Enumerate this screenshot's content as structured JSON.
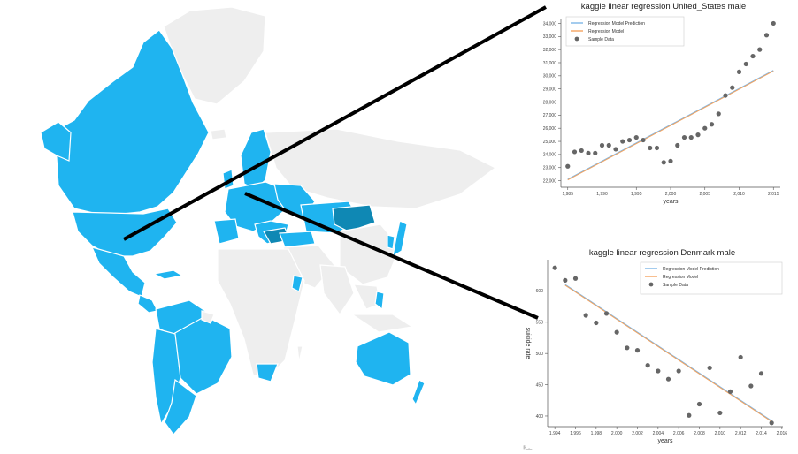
{
  "map": {
    "highlight_color": "#1fb4f0",
    "dark_highlight_color": "#0f88b4",
    "base_color": "#eeeeee",
    "border_color": "#ffffff"
  },
  "connector_color": "#000000",
  "chart_data": [
    {
      "type": "scatter",
      "title": "kaggle linear regression United_States male",
      "xlabel": "years",
      "ylabel": "",
      "xlim": [
        1984,
        2016
      ],
      "ylim": [
        21500,
        34300
      ],
      "xticks": [
        "1,985",
        "1,990",
        "1,995",
        "2,000",
        "2,005",
        "2,010",
        "2,015"
      ],
      "yticks": [
        "22,000",
        "23,000",
        "24,000",
        "25,000",
        "26,000",
        "27,000",
        "28,000",
        "29,000",
        "30,000",
        "31,000",
        "32,000",
        "33,000",
        "34,000"
      ],
      "legend": [
        "Regression Model Prediction",
        "Regression Model",
        "Sample Data"
      ],
      "legend_position": "top-left",
      "colors": {
        "prediction": "#7eb6e6",
        "model": "#f4a460",
        "sample": "#666666"
      },
      "x": [
        1985,
        1986,
        1987,
        1988,
        1989,
        1990,
        1991,
        1992,
        1993,
        1994,
        1995,
        1996,
        1997,
        1998,
        1999,
        2000,
        2001,
        2002,
        2003,
        2004,
        2005,
        2006,
        2007,
        2008,
        2009,
        2010,
        2011,
        2012,
        2013,
        2014,
        2015
      ],
      "y": [
        23100,
        24200,
        24300,
        24100,
        24100,
        24700,
        24700,
        24400,
        25000,
        25100,
        25300,
        25100,
        24500,
        24500,
        23400,
        23500,
        24700,
        25300,
        25300,
        25500,
        26000,
        26300,
        27100,
        28500,
        29100,
        30300,
        30900,
        31500,
        32000,
        33100,
        34000
      ],
      "line_x": [
        1985,
        2015
      ],
      "line_y": [
        22100,
        30400
      ]
    },
    {
      "type": "scatter",
      "title": "kaggle linear regression Denmark male",
      "xlabel": "years",
      "ylabel": "suicide rate",
      "xlim": [
        1993.3,
        2016.1
      ],
      "ylim": [
        383,
        650
      ],
      "xticks": [
        "1,994",
        "1,996",
        "1,998",
        "2,000",
        "2,002",
        "2,004",
        "2,006",
        "2,008",
        "2,010",
        "2,012",
        "2,014",
        "2,016"
      ],
      "xtick_values": [
        1994,
        1996,
        1998,
        2000,
        2002,
        2004,
        2006,
        2008,
        2010,
        2012,
        2014,
        2016
      ],
      "yticks": [
        "400",
        "450",
        "500",
        "550",
        "600"
      ],
      "ytick_values": [
        400,
        450,
        500,
        550,
        600
      ],
      "legend": [
        "Regression Model Prediction",
        "Regression Model",
        "Sample Data"
      ],
      "legend_position": "top-right",
      "colors": {
        "prediction": "#7eb6e6",
        "model": "#f4a460",
        "sample": "#666666"
      },
      "x": [
        1994,
        1995,
        1996,
        1997,
        1998,
        1999,
        2000,
        2001,
        2002,
        2003,
        2004,
        2005,
        2006,
        2007,
        2008,
        2009,
        2010,
        2011,
        2012,
        2013,
        2014,
        2015
      ],
      "y": [
        637,
        617,
        620,
        561,
        549,
        564,
        534,
        509,
        505,
        481,
        472,
        459,
        472,
        401,
        419,
        477,
        405,
        439,
        494,
        448,
        468,
        389
      ],
      "line_x": [
        1995,
        2015
      ],
      "line_y": [
        610,
        392
      ]
    }
  ],
  "watermark": "ᆘᅩ"
}
